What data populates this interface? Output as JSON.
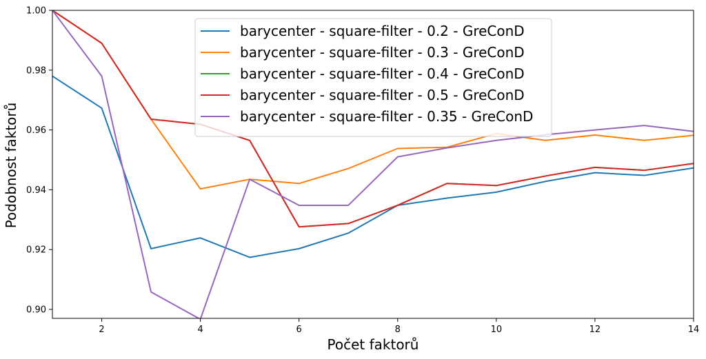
{
  "chart_data": {
    "type": "line",
    "title": "",
    "xlabel": "Počet faktorů",
    "ylabel": "Podobnost faktorů",
    "xlim": [
      1,
      14
    ],
    "ylim": [
      0.897,
      1.0
    ],
    "x_ticks": [
      2,
      4,
      6,
      8,
      10,
      12,
      14
    ],
    "y_ticks": [
      0.9,
      0.92,
      0.94,
      0.96,
      0.98,
      1.0
    ],
    "x_tick_labels": [
      "2",
      "4",
      "6",
      "8",
      "10",
      "12",
      "14"
    ],
    "y_tick_labels": [
      "0.90",
      "0.92",
      "0.94",
      "0.96",
      "0.98",
      "1.00"
    ],
    "grid": false,
    "legend_position": "top-center",
    "x": [
      1,
      2,
      3,
      4,
      5,
      6,
      7,
      8,
      9,
      10,
      11,
      12,
      13,
      14
    ],
    "series": [
      {
        "name": "barycenter - square-filter - 0.2 - GreConD",
        "color": "#1f77b4",
        "values": [
          0.978,
          0.9673,
          0.9203,
          0.9239,
          0.9174,
          0.9203,
          0.9255,
          0.9348,
          0.9372,
          0.9392,
          0.9428,
          0.9457,
          0.9448,
          0.9473
        ]
      },
      {
        "name": "barycenter - square-filter - 0.3 - GreConD",
        "color": "#ff7f0e",
        "values": [
          1.0,
          0.989,
          0.9636,
          0.9403,
          0.9435,
          0.9421,
          0.9471,
          0.9538,
          0.9542,
          0.9588,
          0.9565,
          0.9583,
          0.9565,
          0.9582
        ]
      },
      {
        "name": "barycenter - square-filter - 0.4 - GreConD",
        "color": "#2ca02c",
        "values": [
          1.0,
          0.989,
          0.9636,
          0.9619,
          0.9565,
          0.9276,
          0.9287,
          0.9348,
          0.9421,
          0.9414,
          0.9446,
          0.9475,
          0.9465,
          0.9488
        ]
      },
      {
        "name": "barycenter - square-filter - 0.5 - GreConD",
        "color": "#d62728",
        "values": [
          1.0,
          0.989,
          0.9636,
          0.9619,
          0.9565,
          0.9276,
          0.9287,
          0.9348,
          0.9421,
          0.9414,
          0.9446,
          0.9475,
          0.9465,
          0.9488
        ]
      },
      {
        "name": "barycenter - square-filter - 0.35 - GreConD",
        "color": "#9467bd",
        "values": [
          1.0,
          0.978,
          0.9058,
          0.8967,
          0.9435,
          0.9348,
          0.9348,
          0.951,
          0.954,
          0.9565,
          0.9584,
          0.96,
          0.9615,
          0.9595
        ]
      }
    ]
  }
}
